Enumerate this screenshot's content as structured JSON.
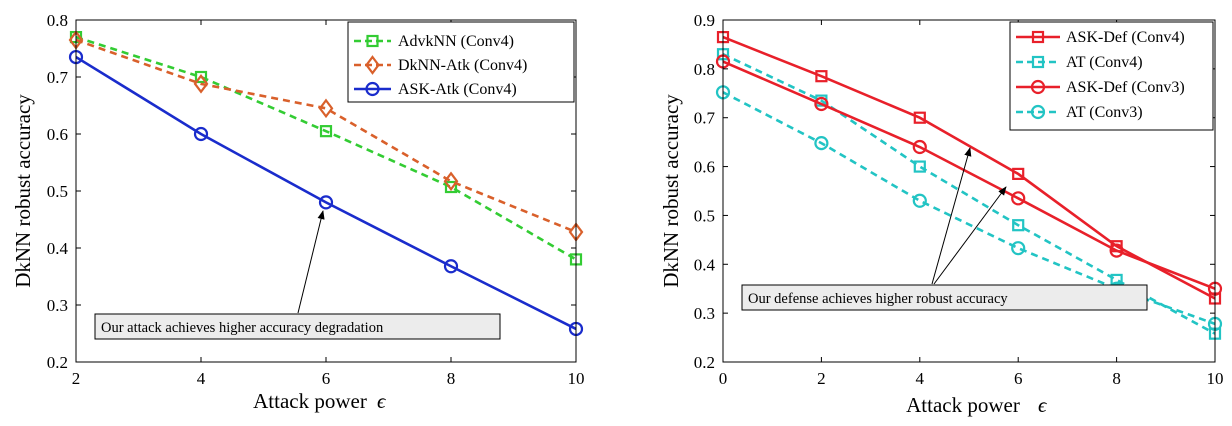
{
  "chart_data": [
    {
      "type": "line",
      "xlabel": "Attack power",
      "xlabel_symbol": "ϵ",
      "ylabel": "DkNN robust accuracy",
      "xlim": [
        2,
        10
      ],
      "ylim": [
        0.2,
        0.8
      ],
      "xticks": [
        2,
        4,
        6,
        8,
        10
      ],
      "yticks": [
        0.2,
        0.3,
        0.4,
        0.5,
        0.6,
        0.7,
        0.8
      ],
      "xtick_labels": [
        "2",
        "4",
        "6",
        "8",
        "10"
      ],
      "ytick_labels": [
        "0.2",
        "0.3",
        "0.4",
        "0.5",
        "0.6",
        "0.7",
        "0.8"
      ],
      "grid": false,
      "legend_position": "top-right",
      "series": [
        {
          "name": "AdvkNN (Conv4)",
          "x": [
            2,
            4,
            6,
            8,
            10
          ],
          "y": [
            0.77,
            0.7,
            0.605,
            0.507,
            0.38
          ],
          "color": "#33cc33",
          "dash": "dashed",
          "marker": "square"
        },
        {
          "name": "DkNN-Atk (Conv4)",
          "x": [
            2,
            4,
            6,
            8,
            10
          ],
          "y": [
            0.765,
            0.688,
            0.645,
            0.517,
            0.428
          ],
          "color": "#d9602b",
          "dash": "dashed",
          "marker": "diamond"
        },
        {
          "name": "ASK-Atk (Conv4)",
          "x": [
            2,
            4,
            6,
            8,
            10
          ],
          "y": [
            0.735,
            0.6,
            0.48,
            0.368,
            0.258
          ],
          "color": "#1a2ccc",
          "dash": "solid",
          "marker": "circle"
        }
      ],
      "annotation": {
        "text": "Our attack achieves higher accuracy degradation",
        "arrow_to": [
          6,
          0.48
        ]
      }
    },
    {
      "type": "line",
      "xlabel": "Attack power",
      "xlabel_symbol": "ϵ",
      "ylabel": "DkNN robust accuracy",
      "xlim": [
        0,
        10
      ],
      "ylim": [
        0.2,
        0.9
      ],
      "xticks": [
        0,
        2,
        4,
        6,
        8,
        10
      ],
      "yticks": [
        0.2,
        0.3,
        0.4,
        0.5,
        0.6,
        0.7,
        0.8,
        0.9
      ],
      "xtick_labels": [
        "0",
        "2",
        "4",
        "6",
        "8",
        "10"
      ],
      "ytick_labels": [
        "0.2",
        "0.3",
        "0.4",
        "0.5",
        "0.6",
        "0.7",
        "0.8",
        "0.9"
      ],
      "grid": false,
      "legend_position": "top-right",
      "series": [
        {
          "name": "ASK-Def (Conv4)",
          "x": [
            0,
            2,
            4,
            6,
            8,
            10
          ],
          "y": [
            0.865,
            0.785,
            0.7,
            0.585,
            0.437,
            0.33
          ],
          "color": "#e8202a",
          "dash": "solid",
          "marker": "square"
        },
        {
          "name": "AT (Conv4)",
          "x": [
            0,
            2,
            4,
            6,
            8,
            10
          ],
          "y": [
            0.83,
            0.735,
            0.6,
            0.48,
            0.368,
            0.258
          ],
          "color": "#22c4c4",
          "dash": "dashed",
          "marker": "square"
        },
        {
          "name": "ASK-Def (Conv3)",
          "x": [
            0,
            2,
            4,
            6,
            8,
            10
          ],
          "y": [
            0.815,
            0.728,
            0.64,
            0.535,
            0.428,
            0.35
          ],
          "color": "#e8202a",
          "dash": "solid",
          "marker": "circle"
        },
        {
          "name": "AT (Conv3)",
          "x": [
            0,
            2,
            4,
            6,
            8,
            10
          ],
          "y": [
            0.752,
            0.648,
            0.53,
            0.433,
            0.35,
            0.278
          ],
          "color": "#22c4c4",
          "dash": "dashed",
          "marker": "circle"
        }
      ],
      "annotation": {
        "text": "Our defense achieves higher robust accuracy",
        "arrows_to": [
          [
            5,
            0.64
          ],
          [
            5.8,
            0.555
          ]
        ]
      }
    }
  ]
}
